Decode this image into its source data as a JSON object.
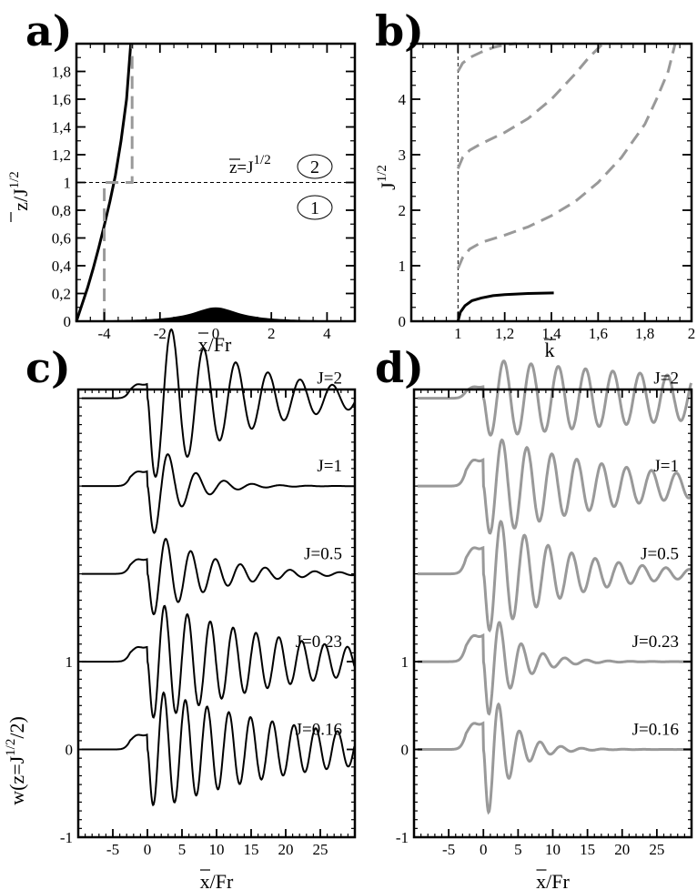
{
  "chart_data": [
    {
      "panel": "a)",
      "type": "line",
      "xlabel": "x/Fr",
      "ylabel": "z/J",
      "ylabel_sup": "1/2",
      "xlim": [
        -5,
        5
      ],
      "ylim": [
        0,
        2
      ],
      "xticks": [
        "-4",
        "-2",
        "0",
        "2",
        "4"
      ],
      "yticks": [
        "0",
        "0,2",
        "0,4",
        "0,6",
        "0,8",
        "1",
        "1,2",
        "1,4",
        "1,6",
        "1,8"
      ],
      "annotation": "z=J",
      "annotation_sup": "1/2",
      "region_labels": [
        "2",
        "1"
      ],
      "interface_level": 1,
      "series": [
        {
          "color": "#000000",
          "style": "solid",
          "x": [
            -5,
            -4.8,
            -4.6,
            -4.4,
            -4.2,
            -4.0,
            -3.8,
            -3.6,
            -3.4,
            -3.2,
            -3.05
          ],
          "y": [
            0,
            0.12,
            0.24,
            0.38,
            0.53,
            0.69,
            0.86,
            1.05,
            1.3,
            1.6,
            2.0
          ]
        },
        {
          "color": "#999999",
          "style": "dashed",
          "x": [
            -4,
            -4,
            -3,
            -3
          ],
          "y": [
            0,
            1,
            1,
            2
          ]
        }
      ],
      "obstacle": {
        "height": 0.1,
        "half_width": 1
      }
    },
    {
      "panel": "b)",
      "type": "line",
      "xlabel": "k",
      "ylabel": "J",
      "ylabel_sup": "1/2",
      "xlim": [
        0.8,
        2
      ],
      "ylim": [
        0,
        5
      ],
      "xticks": [
        "1",
        "1,2",
        "1,4",
        "1,6",
        "1,8",
        "2"
      ],
      "yticks": [
        "0",
        "1",
        "2",
        "3",
        "4"
      ],
      "vline_x": 1,
      "series": [
        {
          "color": "#000000",
          "style": "solid",
          "x": [
            1.0,
            1.01,
            1.03,
            1.06,
            1.1,
            1.15,
            1.2,
            1.3,
            1.41
          ],
          "y": [
            0,
            0.16,
            0.28,
            0.37,
            0.42,
            0.46,
            0.48,
            0.5,
            0.51
          ]
        },
        {
          "color": "#999999",
          "style": "dashed",
          "x": [
            1.0,
            1.02,
            1.05,
            1.1,
            1.2,
            1.3,
            1.4,
            1.5,
            1.6,
            1.7,
            1.8,
            1.85,
            1.9,
            1.93
          ],
          "y": [
            0.95,
            1.15,
            1.3,
            1.42,
            1.55,
            1.7,
            1.9,
            2.15,
            2.5,
            2.95,
            3.55,
            4.0,
            4.5,
            5.0
          ]
        },
        {
          "color": "#999999",
          "style": "dashed",
          "x": [
            1.0,
            1.02,
            1.05,
            1.1,
            1.2,
            1.3,
            1.4,
            1.5,
            1.56,
            1.62
          ],
          "y": [
            2.75,
            2.95,
            3.08,
            3.2,
            3.4,
            3.65,
            4.0,
            4.45,
            4.75,
            5.0
          ]
        },
        {
          "color": "#999999",
          "style": "dashed",
          "x": [
            1.0,
            1.02,
            1.05,
            1.1,
            1.15,
            1.2,
            1.25
          ],
          "y": [
            4.5,
            4.65,
            4.75,
            4.85,
            4.93,
            4.98,
            5.0
          ]
        }
      ]
    },
    {
      "panel": "c)",
      "type": "line",
      "xlabel": "x/Fr",
      "ylabel": "w(z=J",
      "ylabel_sup": "1/2",
      "ylabel_tail": "/2)",
      "xlim": [
        -10,
        30
      ],
      "ylim": [
        -1,
        4.1
      ],
      "xticks": [
        "-5",
        "0",
        "5",
        "10",
        "15",
        "20",
        "25"
      ],
      "yticks": [
        "-1",
        "0",
        "1"
      ],
      "color": "#000000",
      "series": [
        {
          "name": "J=2",
          "offset": 4.0,
          "amp": [
            0.27,
            1.0
          ],
          "k": 1.35,
          "decay": 0.07
        },
        {
          "name": "J=1",
          "offset": 3.0,
          "amp": [
            0.28,
            0.7
          ],
          "k": 1.55,
          "decay": 0.22
        },
        {
          "name": "J=0.5",
          "offset": 2.0,
          "amp": [
            0.28,
            0.55
          ],
          "k": 1.75,
          "decay": 0.12
        },
        {
          "name": "J=0.23",
          "offset": 1.0,
          "amp": [
            0.28,
            0.72
          ],
          "k": 1.9,
          "decay": 0.05
        },
        {
          "name": "J=0.16",
          "offset": 0.0,
          "amp": [
            0.28,
            0.72
          ],
          "k": 2.0,
          "decay": 0.045
        }
      ]
    },
    {
      "panel": "d)",
      "type": "line",
      "xlabel": "x/Fr",
      "xlim": [
        -10,
        30
      ],
      "ylim": [
        -1,
        4.1
      ],
      "xticks": [
        "-5",
        "0",
        "5",
        "10",
        "15",
        "20",
        "25"
      ],
      "yticks": [
        "-1",
        "0",
        "1"
      ],
      "color": "#999999",
      "series": [
        {
          "name": "J=2",
          "offset": 4.0,
          "amp": [
            0.22,
            0.45
          ],
          "k": 1.6,
          "decay": 0.02
        },
        {
          "name": "J=1",
          "offset": 3.0,
          "amp": [
            0.5,
            0.6
          ],
          "k": 1.75,
          "decay": 0.05
        },
        {
          "name": "J=0.5",
          "offset": 2.0,
          "amp": [
            0.5,
            0.75
          ],
          "k": 1.85,
          "decay": 0.09
        },
        {
          "name": "J=0.23",
          "offset": 1.0,
          "amp": [
            0.5,
            0.8
          ],
          "k": 2.0,
          "decay": 0.25
        },
        {
          "name": "J=0.16",
          "offset": 0.0,
          "amp": [
            0.5,
            1.0
          ],
          "k": 2.1,
          "decay": 0.3
        }
      ]
    }
  ]
}
